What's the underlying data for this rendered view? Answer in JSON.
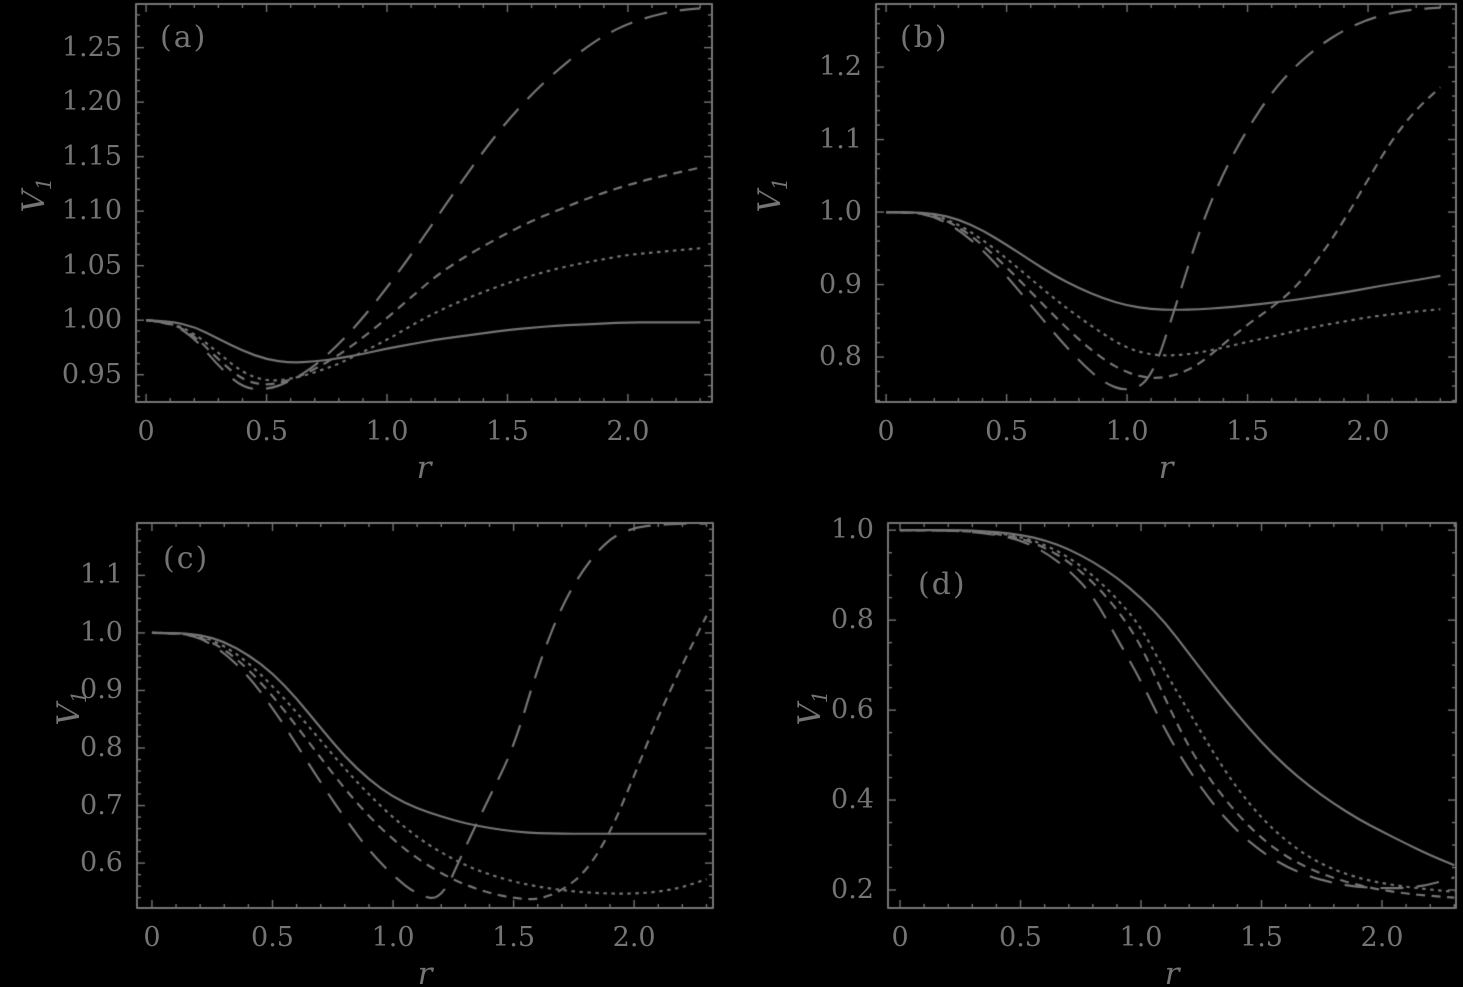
{
  "figure": {
    "background": "#000000",
    "foreground": "#747474",
    "description": "Four-panel line figure of V1 versus r"
  },
  "chart_data": [
    {
      "id": "a",
      "panel_label": "(a)",
      "type": "line",
      "xlabel": "r",
      "ylabel_base": "V",
      "ylabel_sub": "1",
      "xlim": [
        -0.042,
        2.349
      ],
      "ylim": [
        0.925,
        1.29
      ],
      "xticks": {
        "values": [
          0,
          0.5,
          1.0,
          1.5,
          2.0
        ],
        "labels": [
          "0",
          "0.5",
          "1.0",
          "1.5",
          "2.0"
        ],
        "minor_step": 0.1
      },
      "yticks": {
        "values": [
          0.95,
          1.0,
          1.05,
          1.1,
          1.15,
          1.2,
          1.25
        ],
        "labels": [
          "0.95",
          "1.00",
          "1.05",
          "1.10",
          "1.15",
          "1.20",
          "1.25"
        ],
        "minor_step": 0.01
      },
      "x": [
        0,
        0.1,
        0.2,
        0.3,
        0.4,
        0.5,
        0.6,
        0.7,
        0.8,
        0.9,
        1.0,
        1.1,
        1.2,
        1.3,
        1.4,
        1.5,
        1.6,
        1.7,
        1.8,
        1.9,
        2.0,
        2.1,
        2.2,
        2.3
      ],
      "series": [
        {
          "name": "solid",
          "dash": [],
          "values": [
            1.0,
            0.999,
            0.994,
            0.983,
            0.972,
            0.964,
            0.961,
            0.962,
            0.965,
            0.969,
            0.974,
            0.978,
            0.982,
            0.985,
            0.988,
            0.991,
            0.993,
            0.995,
            0.996,
            0.997,
            0.998,
            0.998,
            0.998,
            0.998
          ]
        },
        {
          "name": "dotted",
          "dash": [
            3.5,
            4.5
          ],
          "values": [
            1.0,
            0.998,
            0.988,
            0.97,
            0.952,
            0.944,
            0.946,
            0.952,
            0.96,
            0.971,
            0.982,
            0.995,
            1.007,
            1.017,
            1.026,
            1.034,
            1.041,
            1.047,
            1.052,
            1.056,
            1.06,
            1.062,
            1.064,
            1.066
          ]
        },
        {
          "name": "short-dashed",
          "dash": [
            9,
            6.5
          ],
          "values": [
            1.0,
            0.998,
            0.986,
            0.964,
            0.945,
            0.94,
            0.945,
            0.955,
            0.968,
            0.984,
            1.002,
            1.021,
            1.04,
            1.055,
            1.068,
            1.08,
            1.091,
            1.1,
            1.109,
            1.117,
            1.124,
            1.13,
            1.135,
            1.14
          ]
        },
        {
          "name": "long-dashed",
          "dash": [
            23,
            13
          ],
          "values": [
            1.0,
            0.998,
            0.984,
            0.958,
            0.938,
            0.936,
            0.944,
            0.958,
            0.978,
            1.002,
            1.03,
            1.06,
            1.092,
            1.124,
            1.155,
            1.183,
            1.207,
            1.228,
            1.246,
            1.261,
            1.272,
            1.279,
            1.284,
            1.286
          ]
        }
      ]
    },
    {
      "id": "b",
      "panel_label": "(b)",
      "type": "line",
      "xlabel": "r",
      "ylabel_base": "V",
      "ylabel_sub": "1",
      "xlim": [
        -0.042,
        2.365
      ],
      "ylim": [
        0.738,
        1.287
      ],
      "xticks": {
        "values": [
          0,
          0.5,
          1.0,
          1.5,
          2.0
        ],
        "labels": [
          "0",
          "0.5",
          "1.0",
          "1.5",
          "2.0"
        ],
        "minor_step": 0.1
      },
      "yticks": {
        "values": [
          0.8,
          0.9,
          1.0,
          1.1,
          1.2
        ],
        "labels": [
          "0.8",
          "0.9",
          "1.0",
          "1.1",
          "1.2"
        ],
        "minor_step": 0.02
      },
      "x": [
        0,
        0.1,
        0.2,
        0.3,
        0.4,
        0.5,
        0.6,
        0.7,
        0.8,
        0.9,
        1.0,
        1.1,
        1.2,
        1.3,
        1.4,
        1.5,
        1.6,
        1.7,
        1.8,
        1.9,
        2.0,
        2.1,
        2.2,
        2.3
      ],
      "series": [
        {
          "name": "solid",
          "dash": [],
          "values": [
            1.0,
            1.0,
            0.998,
            0.99,
            0.975,
            0.955,
            0.933,
            0.912,
            0.895,
            0.881,
            0.871,
            0.866,
            0.865,
            0.866,
            0.868,
            0.871,
            0.875,
            0.879,
            0.884,
            0.889,
            0.895,
            0.901,
            0.906,
            0.912
          ]
        },
        {
          "name": "dotted",
          "dash": [
            3.5,
            4.5
          ],
          "values": [
            1.0,
            1.0,
            0.996,
            0.983,
            0.962,
            0.936,
            0.908,
            0.88,
            0.855,
            0.832,
            0.812,
            0.803,
            0.802,
            0.806,
            0.813,
            0.821,
            0.828,
            0.836,
            0.843,
            0.849,
            0.855,
            0.859,
            0.863,
            0.866
          ]
        },
        {
          "name": "short-dashed",
          "dash": [
            9,
            6.5
          ],
          "values": [
            1.0,
            1.0,
            0.995,
            0.98,
            0.955,
            0.924,
            0.89,
            0.856,
            0.824,
            0.797,
            0.778,
            0.77,
            0.774,
            0.79,
            0.818,
            0.845,
            0.868,
            0.896,
            0.938,
            0.988,
            1.045,
            1.1,
            1.142,
            1.172
          ]
        },
        {
          "name": "long-dashed",
          "dash": [
            23,
            13
          ],
          "values": [
            1.0,
            1.0,
            0.994,
            0.976,
            0.948,
            0.912,
            0.872,
            0.832,
            0.795,
            0.765,
            0.752,
            0.768,
            0.868,
            0.975,
            1.055,
            1.115,
            1.165,
            1.202,
            1.23,
            1.251,
            1.266,
            1.275,
            1.28,
            1.282
          ]
        }
      ]
    },
    {
      "id": "c",
      "panel_label": "(c)",
      "type": "line",
      "xlabel": "r",
      "ylabel_base": "V",
      "ylabel_sub": "1",
      "xlim": [
        -0.062,
        2.327
      ],
      "ylim": [
        0.522,
        1.191
      ],
      "xticks": {
        "values": [
          0,
          0.5,
          1.0,
          1.5,
          2.0
        ],
        "labels": [
          "0",
          "0.5",
          "1.0",
          "1.5",
          "2.0"
        ],
        "minor_step": 0.1
      },
      "yticks": {
        "values": [
          0.6,
          0.7,
          0.8,
          0.9,
          1.0,
          1.1
        ],
        "labels": [
          "0.6",
          "0.7",
          "0.8",
          "0.9",
          "1.0",
          "1.1"
        ],
        "minor_step": 0.02
      },
      "x": [
        0,
        0.1,
        0.2,
        0.3,
        0.4,
        0.5,
        0.6,
        0.7,
        0.8,
        0.9,
        1.0,
        1.1,
        1.2,
        1.3,
        1.4,
        1.5,
        1.6,
        1.7,
        1.8,
        1.9,
        2.0,
        2.1,
        2.2,
        2.3
      ],
      "series": [
        {
          "name": "solid",
          "dash": [],
          "values": [
            1.0,
            1.0,
            0.997,
            0.985,
            0.962,
            0.93,
            0.886,
            0.835,
            0.785,
            0.745,
            0.715,
            0.695,
            0.681,
            0.669,
            0.661,
            0.655,
            0.652,
            0.651,
            0.651,
            0.651,
            0.651,
            0.651,
            0.651,
            0.651
          ]
        },
        {
          "name": "dotted",
          "dash": [
            3.5,
            4.5
          ],
          "values": [
            1.0,
            1.0,
            0.995,
            0.978,
            0.948,
            0.908,
            0.862,
            0.813,
            0.764,
            0.719,
            0.679,
            0.645,
            0.618,
            0.596,
            0.58,
            0.568,
            0.559,
            0.553,
            0.549,
            0.547,
            0.547,
            0.55,
            0.558,
            0.572
          ]
        },
        {
          "name": "short-dashed",
          "dash": [
            9,
            6.5
          ],
          "values": [
            1.0,
            1.0,
            0.993,
            0.972,
            0.937,
            0.891,
            0.838,
            0.783,
            0.729,
            0.681,
            0.641,
            0.608,
            0.582,
            0.562,
            0.548,
            0.539,
            0.536,
            0.552,
            0.585,
            0.652,
            0.752,
            0.855,
            0.945,
            1.03
          ]
        },
        {
          "name": "long-dashed",
          "dash": [
            23,
            13
          ],
          "values": [
            1.0,
            1.0,
            0.992,
            0.966,
            0.925,
            0.87,
            0.806,
            0.74,
            0.678,
            0.622,
            0.578,
            0.545,
            0.535,
            0.628,
            0.715,
            0.8,
            0.94,
            1.048,
            1.118,
            1.165,
            1.183,
            1.188,
            1.19,
            1.19
          ]
        }
      ]
    },
    {
      "id": "d",
      "panel_label": "(d)",
      "type": "line",
      "xlabel": "r",
      "ylabel_base": "V",
      "ylabel_sub": "1",
      "xlim": [
        -0.05,
        2.307
      ],
      "ylim": [
        0.16,
        1.016
      ],
      "xticks": {
        "values": [
          0,
          0.5,
          1.0,
          1.5,
          2.0
        ],
        "labels": [
          "0",
          "0.5",
          "1.0",
          "1.5",
          "2.0"
        ],
        "minor_step": 0.1
      },
      "yticks": {
        "values": [
          0.2,
          0.4,
          0.6,
          0.8,
          1.0
        ],
        "labels": [
          "0.2",
          "0.4",
          "0.6",
          "0.8",
          "1.0"
        ],
        "minor_step": 0.05
      },
      "x": [
        0,
        0.1,
        0.2,
        0.3,
        0.4,
        0.5,
        0.6,
        0.7,
        0.8,
        0.9,
        1.0,
        1.1,
        1.2,
        1.3,
        1.4,
        1.5,
        1.6,
        1.7,
        1.8,
        1.9,
        2.0,
        2.1,
        2.2,
        2.3
      ],
      "series": [
        {
          "name": "solid",
          "dash": [],
          "values": [
            1.0,
            1.0,
            1.0,
            0.999,
            0.996,
            0.99,
            0.978,
            0.958,
            0.93,
            0.895,
            0.85,
            0.795,
            0.725,
            0.655,
            0.59,
            0.528,
            0.475,
            0.43,
            0.392,
            0.358,
            0.33,
            0.303,
            0.277,
            0.255
          ]
        },
        {
          "name": "dotted",
          "dash": [
            3.5,
            4.5
          ],
          "values": [
            1.0,
            1.0,
            1.0,
            0.998,
            0.994,
            0.985,
            0.968,
            0.94,
            0.9,
            0.848,
            0.785,
            0.685,
            0.595,
            0.505,
            0.425,
            0.36,
            0.31,
            0.272,
            0.245,
            0.227,
            0.215,
            0.207,
            0.201,
            0.196
          ]
        },
        {
          "name": "short-dashed",
          "dash": [
            9,
            6.5
          ],
          "values": [
            1.0,
            1.0,
            0.999,
            0.997,
            0.992,
            0.982,
            0.962,
            0.93,
            0.885,
            0.825,
            0.745,
            0.625,
            0.515,
            0.435,
            0.368,
            0.315,
            0.275,
            0.247,
            0.226,
            0.211,
            0.2,
            0.192,
            0.187,
            0.183
          ]
        },
        {
          "name": "long-dashed",
          "dash": [
            23,
            13
          ],
          "values": [
            1.0,
            1.0,
            0.999,
            0.996,
            0.99,
            0.978,
            0.952,
            0.912,
            0.855,
            0.76,
            0.665,
            0.555,
            0.465,
            0.39,
            0.33,
            0.285,
            0.252,
            0.23,
            0.215,
            0.207,
            0.204,
            0.204,
            0.212,
            0.228
          ]
        }
      ]
    }
  ]
}
